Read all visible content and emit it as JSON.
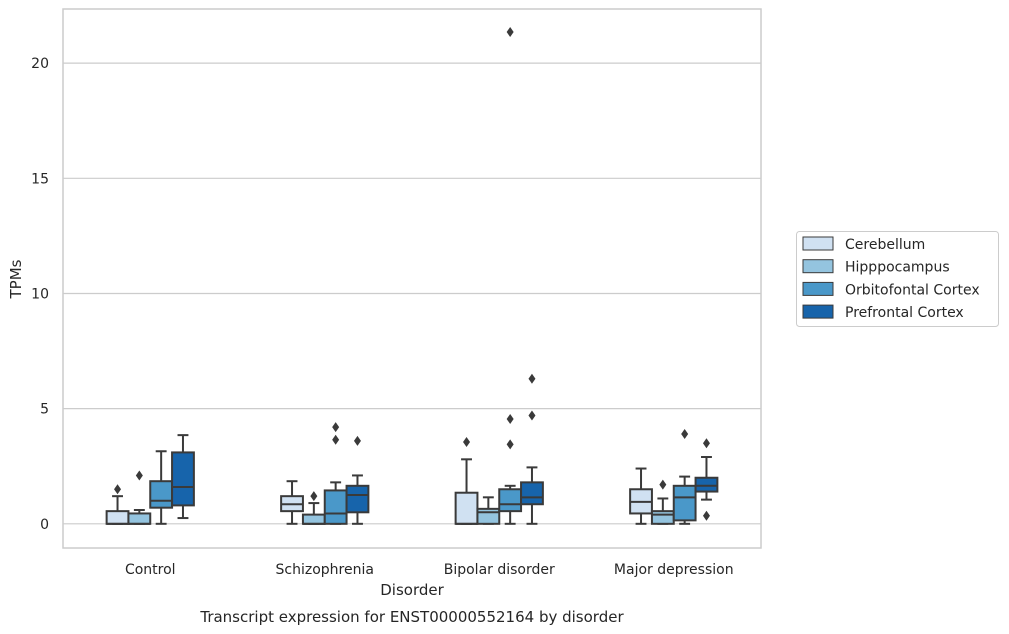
{
  "chart_data": {
    "type": "box",
    "title": "",
    "caption": "Transcript expression for ENST00000552164 by disorder",
    "xlabel": "Disorder",
    "ylabel": "TPMs",
    "ylim": [
      -1.05,
      22.35
    ],
    "yticks": [
      0,
      5,
      10,
      15,
      20
    ],
    "grid": "horizontal",
    "legend_position": "right",
    "categories": [
      "Control",
      "Schizophrenia",
      "Bipolar disorder",
      "Major depression"
    ],
    "series": [
      {
        "name": "Cerebellum",
        "color": "#d0e1f2",
        "boxes": [
          {
            "whislo": 0.0,
            "q1": 0.0,
            "med": 0.0,
            "q3": 0.55,
            "whishi": 1.2,
            "fliers": [
              1.5
            ]
          },
          {
            "whislo": 0.0,
            "q1": 0.55,
            "med": 0.85,
            "q3": 1.2,
            "whishi": 1.85,
            "fliers": []
          },
          {
            "whislo": 0.0,
            "q1": 0.0,
            "med": 0.0,
            "q3": 1.35,
            "whishi": 2.8,
            "fliers": [
              3.55
            ]
          },
          {
            "whislo": 0.0,
            "q1": 0.45,
            "med": 0.95,
            "q3": 1.5,
            "whishi": 2.4,
            "fliers": []
          }
        ]
      },
      {
        "name": "Hipppocampus",
        "color": "#94c4df",
        "boxes": [
          {
            "whislo": 0.0,
            "q1": 0.0,
            "med": 0.0,
            "q3": 0.45,
            "whishi": 0.6,
            "fliers": [
              2.1
            ]
          },
          {
            "whislo": 0.0,
            "q1": 0.0,
            "med": 0.0,
            "q3": 0.4,
            "whishi": 0.9,
            "fliers": [
              1.2
            ]
          },
          {
            "whislo": 0.0,
            "q1": 0.0,
            "med": 0.5,
            "q3": 0.65,
            "whishi": 1.15,
            "fliers": []
          },
          {
            "whislo": 0.0,
            "q1": 0.0,
            "med": 0.4,
            "q3": 0.55,
            "whishi": 1.1,
            "fliers": [
              1.7
            ]
          }
        ]
      },
      {
        "name": "Orbitofontal Cortex",
        "color": "#4a98c9",
        "boxes": [
          {
            "whislo": 0.0,
            "q1": 0.7,
            "med": 1.0,
            "q3": 1.85,
            "whishi": 3.15,
            "fliers": []
          },
          {
            "whislo": 0.0,
            "q1": 0.0,
            "med": 0.45,
            "q3": 1.45,
            "whishi": 1.8,
            "fliers": [
              3.65,
              4.2
            ]
          },
          {
            "whislo": 0.0,
            "q1": 0.55,
            "med": 0.85,
            "q3": 1.5,
            "whishi": 1.65,
            "fliers": [
              3.45,
              4.55,
              21.35
            ]
          },
          {
            "whislo": 0.0,
            "q1": 0.15,
            "med": 1.15,
            "q3": 1.65,
            "whishi": 2.05,
            "fliers": [
              3.9
            ]
          }
        ]
      },
      {
        "name": "Prefrontal Cortex",
        "color": "#1764ab",
        "boxes": [
          {
            "whislo": 0.25,
            "q1": 0.8,
            "med": 1.6,
            "q3": 3.1,
            "whishi": 3.85,
            "fliers": []
          },
          {
            "whislo": 0.0,
            "q1": 0.5,
            "med": 1.25,
            "q3": 1.65,
            "whishi": 2.1,
            "fliers": [
              3.6
            ]
          },
          {
            "whislo": 0.0,
            "q1": 0.85,
            "med": 1.15,
            "q3": 1.8,
            "whishi": 2.45,
            "fliers": [
              4.7,
              6.3
            ]
          },
          {
            "whislo": 1.05,
            "q1": 1.4,
            "med": 1.65,
            "q3": 2.0,
            "whishi": 2.9,
            "fliers": [
              0.35,
              3.5
            ]
          }
        ]
      }
    ]
  }
}
